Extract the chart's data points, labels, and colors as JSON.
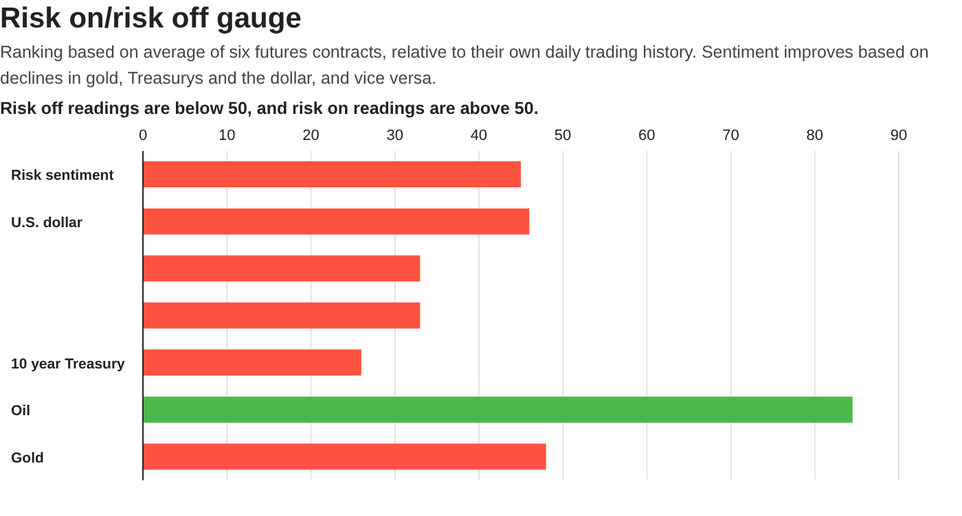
{
  "chart_data": {
    "type": "bar",
    "orientation": "horizontal",
    "title": "Risk on/risk off gauge",
    "subtitle": "Ranking based on average of six futures contracts, relative to their own daily trading history. Sentiment improves based on declines in gold, Treasurys and the dollar, and vice versa.",
    "annotations": [
      "Risk off readings are below 50, and risk on readings are above 50."
    ],
    "categories": [
      "Risk sentiment",
      "U.S. dollar",
      null,
      null,
      "10 year Treasury",
      "Oil",
      "Gold"
    ],
    "values": [
      45,
      46,
      33,
      33,
      26,
      84.5,
      48
    ],
    "colors": [
      "#fc5340",
      "#fc5340",
      "#fc5340",
      "#fc5340",
      "#fc5340",
      "#4cb84c",
      "#fc5340"
    ],
    "xlim": [
      0,
      90
    ],
    "xticks": [
      0,
      10,
      20,
      30,
      40,
      50,
      60,
      70,
      80,
      90
    ],
    "grid": "x"
  }
}
